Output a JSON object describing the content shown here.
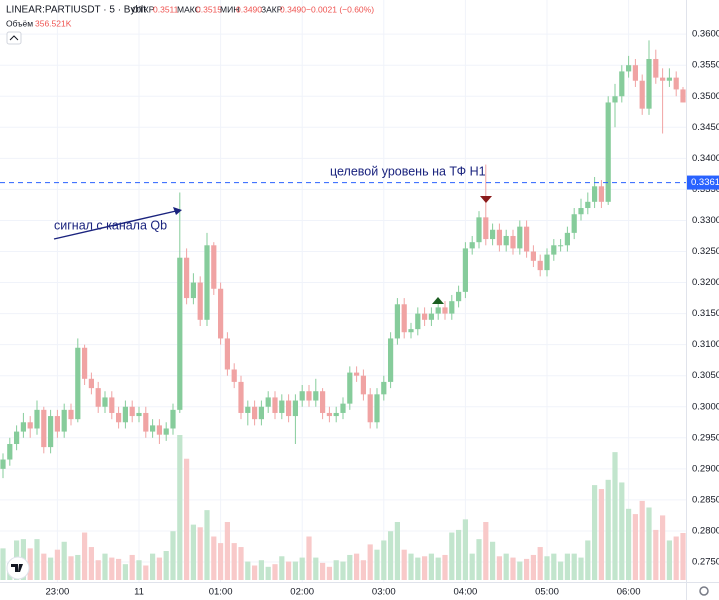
{
  "chart_data": {
    "type": "candlestick",
    "title": "LINEAR:PARTIUSDT · 5 · Bybit",
    "ohlc_labels": [
      "ОТКР",
      "МАКС",
      "МИН",
      "ЗАКР"
    ],
    "ohlc_values": [
      "0.3511",
      "0.3515",
      "0.3490",
      "0.3490"
    ],
    "change": "−0.0021 (−0.60%)",
    "volume_label": "Объём",
    "volume_value": "356.521K",
    "annotations": [
      "целевой уровень на ТФ H1",
      "сигнал с канала Qb"
    ],
    "level": 0.3361,
    "up_color": "#86cc9b",
    "down_color": "#f0a3a3",
    "volume_up_color": "#c2e5cd",
    "volume_down_color": "#f8c9c9",
    "ylim": [
      0.2721,
      0.3655
    ],
    "yticks": [
      {
        "value": 0.275,
        "label": "0.2750"
      },
      {
        "value": 0.28,
        "label": "0.2800"
      },
      {
        "value": 0.285,
        "label": "0.2850"
      },
      {
        "value": 0.29,
        "label": "0.2900"
      },
      {
        "value": 0.295,
        "label": "0.2950"
      },
      {
        "value": 0.3,
        "label": "0.3000"
      },
      {
        "value": 0.305,
        "label": "0.3050"
      },
      {
        "value": 0.31,
        "label": "0.3100"
      },
      {
        "value": 0.315,
        "label": "0.3150"
      },
      {
        "value": 0.32,
        "label": "0.3200"
      },
      {
        "value": 0.325,
        "label": "0.3250"
      },
      {
        "value": 0.33,
        "label": "0.3300"
      },
      {
        "value": 0.335,
        "label": "0.3350"
      },
      {
        "value": 0.34,
        "label": "0.3400"
      },
      {
        "value": 0.345,
        "label": "0.3450"
      },
      {
        "value": 0.35,
        "label": "0.3500"
      },
      {
        "value": 0.355,
        "label": "0.3550"
      },
      {
        "value": 0.36,
        "label": "0.3600"
      }
    ],
    "xticks": [
      {
        "value": 8,
        "label": "23:00"
      },
      {
        "value": 20,
        "label": "11"
      },
      {
        "value": 32,
        "label": "01:00"
      },
      {
        "value": 44,
        "label": "02:00"
      },
      {
        "value": 56,
        "label": "03:00"
      },
      {
        "value": 68,
        "label": "04:00"
      },
      {
        "value": 80,
        "label": "05:00"
      },
      {
        "value": 92,
        "label": "06:00"
      }
    ],
    "open": [
      0.29,
      0.2915,
      0.294,
      0.296,
      0.2975,
      0.2965,
      0.2995,
      0.2935,
      0.2985,
      0.296,
      0.2995,
      0.298,
      0.3095,
      0.3045,
      0.303,
      0.3,
      0.3015,
      0.299,
      0.2975,
      0.3,
      0.2985,
      0.299,
      0.296,
      0.297,
      0.2955,
      0.2965,
      0.2995,
      0.324,
      0.3175,
      0.32,
      0.314,
      0.326,
      0.319,
      0.311,
      0.306,
      0.304,
      0.299,
      0.3,
      0.298,
      0.3,
      0.3015,
      0.299,
      0.301,
      0.2985,
      0.301,
      0.3025,
      0.301,
      0.3025,
      0.299,
      0.2985,
      0.299,
      0.3005,
      0.3055,
      0.305,
      0.302,
      0.2975,
      0.302,
      0.304,
      0.311,
      0.3165,
      0.312,
      0.3125,
      0.315,
      0.314,
      0.315,
      0.316,
      0.315,
      0.317,
      0.3185,
      0.3255,
      0.3265,
      0.3305,
      0.327,
      0.3285,
      0.326,
      0.3275,
      0.3255,
      0.329,
      0.325,
      0.3235,
      0.322,
      0.3245,
      0.326,
      0.326,
      0.328,
      0.331,
      0.332,
      0.333,
      0.3355,
      0.333,
      0.349,
      0.35,
      0.354,
      0.355,
      0.3525,
      0.348,
      0.356,
      0.353,
      0.3525,
      0.353,
      0.3511
    ],
    "high": [
      0.2925,
      0.295,
      0.297,
      0.299,
      0.2985,
      0.301,
      0.3,
      0.2995,
      0.2995,
      0.3005,
      0.3005,
      0.311,
      0.31,
      0.3055,
      0.304,
      0.3025,
      0.3025,
      0.3,
      0.301,
      0.301,
      0.3,
      0.3,
      0.298,
      0.298,
      0.2975,
      0.3005,
      0.3345,
      0.3255,
      0.3215,
      0.321,
      0.328,
      0.3265,
      0.32,
      0.312,
      0.307,
      0.305,
      0.301,
      0.301,
      0.301,
      0.3025,
      0.3025,
      0.302,
      0.302,
      0.302,
      0.3035,
      0.3035,
      0.3045,
      0.303,
      0.3,
      0.3,
      0.3015,
      0.3065,
      0.3065,
      0.306,
      0.303,
      0.303,
      0.305,
      0.312,
      0.3175,
      0.3175,
      0.3135,
      0.316,
      0.316,
      0.316,
      0.317,
      0.317,
      0.318,
      0.3195,
      0.3265,
      0.3275,
      0.3315,
      0.339,
      0.3295,
      0.3295,
      0.3285,
      0.3285,
      0.33,
      0.33,
      0.326,
      0.3245,
      0.3255,
      0.327,
      0.327,
      0.329,
      0.332,
      0.3335,
      0.3345,
      0.337,
      0.3365,
      0.35,
      0.352,
      0.355,
      0.3565,
      0.356,
      0.3535,
      0.359,
      0.3575,
      0.3545,
      0.3545,
      0.354,
      0.3515
    ],
    "low": [
      0.2885,
      0.2905,
      0.293,
      0.295,
      0.295,
      0.2955,
      0.2925,
      0.2925,
      0.295,
      0.295,
      0.297,
      0.2975,
      0.3035,
      0.302,
      0.299,
      0.299,
      0.298,
      0.2965,
      0.2965,
      0.2975,
      0.2975,
      0.295,
      0.295,
      0.294,
      0.2945,
      0.2955,
      0.299,
      0.3165,
      0.3165,
      0.313,
      0.313,
      0.318,
      0.31,
      0.305,
      0.303,
      0.298,
      0.297,
      0.297,
      0.297,
      0.299,
      0.298,
      0.298,
      0.2975,
      0.294,
      0.3,
      0.3,
      0.3,
      0.298,
      0.2975,
      0.2975,
      0.298,
      0.2995,
      0.304,
      0.301,
      0.2965,
      0.2965,
      0.301,
      0.303,
      0.31,
      0.311,
      0.311,
      0.3115,
      0.313,
      0.313,
      0.314,
      0.314,
      0.314,
      0.316,
      0.3175,
      0.3245,
      0.3255,
      0.326,
      0.326,
      0.325,
      0.325,
      0.3245,
      0.3245,
      0.324,
      0.3225,
      0.321,
      0.321,
      0.3235,
      0.325,
      0.325,
      0.327,
      0.33,
      0.331,
      0.332,
      0.332,
      0.3325,
      0.345,
      0.349,
      0.353,
      0.3515,
      0.347,
      0.347,
      0.352,
      0.344,
      0.3515,
      0.35,
      0.349
    ],
    "close": [
      0.2915,
      0.294,
      0.296,
      0.2975,
      0.2965,
      0.2995,
      0.2935,
      0.2985,
      0.296,
      0.2995,
      0.298,
      0.3095,
      0.3045,
      0.303,
      0.3,
      0.3015,
      0.299,
      0.2975,
      0.3,
      0.2985,
      0.299,
      0.296,
      0.297,
      0.2955,
      0.2965,
      0.2995,
      0.324,
      0.3175,
      0.32,
      0.314,
      0.326,
      0.319,
      0.311,
      0.306,
      0.304,
      0.299,
      0.3,
      0.298,
      0.3,
      0.3015,
      0.299,
      0.301,
      0.2985,
      0.301,
      0.3025,
      0.301,
      0.3025,
      0.299,
      0.2985,
      0.299,
      0.3005,
      0.3055,
      0.305,
      0.302,
      0.2975,
      0.302,
      0.304,
      0.311,
      0.3165,
      0.312,
      0.3125,
      0.315,
      0.314,
      0.315,
      0.316,
      0.315,
      0.317,
      0.3185,
      0.3255,
      0.3265,
      0.3305,
      0.327,
      0.3285,
      0.326,
      0.3275,
      0.3255,
      0.329,
      0.325,
      0.3235,
      0.322,
      0.3245,
      0.326,
      0.326,
      0.328,
      0.331,
      0.332,
      0.333,
      0.3355,
      0.333,
      0.349,
      0.35,
      0.354,
      0.355,
      0.3525,
      0.348,
      0.356,
      0.353,
      0.3525,
      0.353,
      0.3511,
      0.349
    ],
    "volume": [
      240,
      130,
      300,
      310,
      240,
      310,
      200,
      170,
      230,
      290,
      180,
      190,
      360,
      250,
      150,
      200,
      170,
      160,
      120,
      190,
      150,
      110,
      200,
      170,
      220,
      370,
      1100,
      920,
      420,
      400,
      530,
      330,
      280,
      440,
      280,
      250,
      140,
      110,
      150,
      100,
      120,
      180,
      140,
      140,
      170,
      330,
      170,
      130,
      100,
      150,
      140,
      190,
      200,
      150,
      270,
      230,
      300,
      370,
      440,
      230,
      200,
      170,
      180,
      200,
      170,
      190,
      360,
      380,
      460,
      200,
      310,
      440,
      290,
      180,
      200,
      170,
      140,
      160,
      190,
      250,
      180,
      200,
      140,
      200,
      200,
      170,
      300,
      720,
      690,
      760,
      970,
      740,
      540,
      500,
      600,
      550,
      380,
      490,
      300,
      330,
      356.521
    ]
  }
}
